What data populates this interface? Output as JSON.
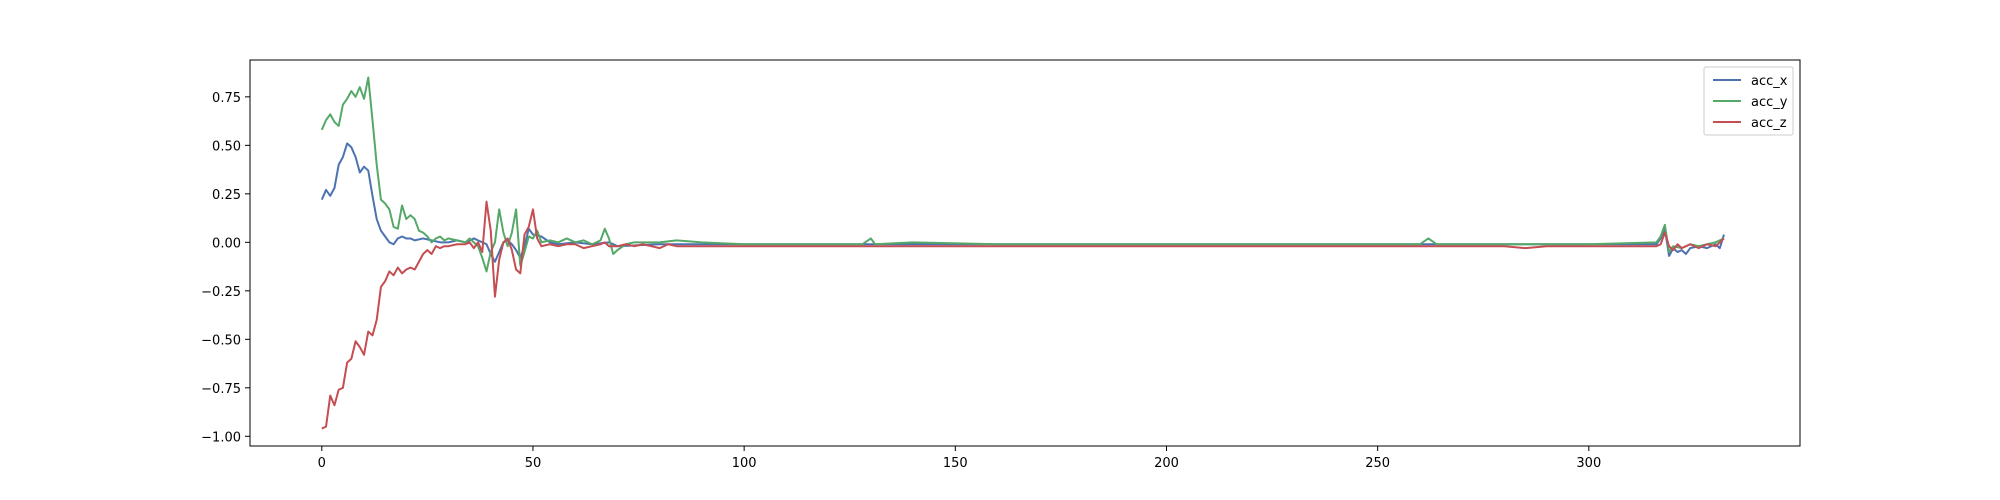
{
  "chart_data": {
    "type": "line",
    "title": "",
    "xlabel": "",
    "ylabel": "",
    "xlim": [
      -17,
      350
    ],
    "ylim": [
      -1.05,
      0.94
    ],
    "grid": false,
    "legend_placement": "top-right",
    "xticks": [
      0,
      50,
      100,
      150,
      200,
      250,
      300
    ],
    "yticks": [
      -1.0,
      -0.75,
      -0.5,
      -0.25,
      0.0,
      0.25,
      0.5,
      0.75
    ],
    "xtick_labels": [
      "0",
      "50",
      "100",
      "150",
      "200",
      "250",
      "300"
    ],
    "ytick_labels": [
      "−1.00",
      "−0.75",
      "−0.50",
      "−0.25",
      "0.00",
      "0.25",
      "0.50",
      "0.75"
    ],
    "series": [
      {
        "name": "acc_x",
        "color": "#4c72b0",
        "points": [
          [
            0,
            0.22
          ],
          [
            1,
            0.27
          ],
          [
            2,
            0.24
          ],
          [
            3,
            0.28
          ],
          [
            4,
            0.4
          ],
          [
            5,
            0.44
          ],
          [
            6,
            0.51
          ],
          [
            7,
            0.49
          ],
          [
            8,
            0.44
          ],
          [
            9,
            0.36
          ],
          [
            10,
            0.39
          ],
          [
            11,
            0.37
          ],
          [
            12,
            0.24
          ],
          [
            13,
            0.12
          ],
          [
            14,
            0.06
          ],
          [
            15,
            0.03
          ],
          [
            16,
            0.0
          ],
          [
            17,
            -0.01
          ],
          [
            18,
            0.02
          ],
          [
            19,
            0.03
          ],
          [
            20,
            0.02
          ],
          [
            21,
            0.02
          ],
          [
            22,
            0.01
          ],
          [
            24,
            0.02
          ],
          [
            26,
            0.01
          ],
          [
            28,
            0.0
          ],
          [
            30,
            0.0
          ],
          [
            32,
            0.01
          ],
          [
            34,
            0.0
          ],
          [
            36,
            0.02
          ],
          [
            37,
            0.01
          ],
          [
            38,
            0.0
          ],
          [
            39,
            -0.01
          ],
          [
            40,
            -0.06
          ],
          [
            41,
            -0.1
          ],
          [
            42,
            -0.05
          ],
          [
            43,
            0.0
          ],
          [
            44,
            0.01
          ],
          [
            45,
            -0.01
          ],
          [
            46,
            -0.04
          ],
          [
            47,
            -0.08
          ],
          [
            48,
            -0.02
          ],
          [
            49,
            0.07
          ],
          [
            50,
            0.04
          ],
          [
            52,
            0.03
          ],
          [
            54,
            0.0
          ],
          [
            56,
            -0.01
          ],
          [
            60,
            0.0
          ],
          [
            64,
            -0.01
          ],
          [
            68,
            0.0
          ],
          [
            70,
            -0.02
          ],
          [
            80,
            -0.01
          ],
          [
            100,
            -0.01
          ],
          [
            120,
            -0.01
          ],
          [
            140,
            -0.01
          ],
          [
            160,
            -0.01
          ],
          [
            180,
            -0.01
          ],
          [
            200,
            -0.01
          ],
          [
            220,
            -0.01
          ],
          [
            240,
            -0.01
          ],
          [
            260,
            -0.01
          ],
          [
            280,
            -0.01
          ],
          [
            300,
            -0.01
          ],
          [
            316,
            -0.01
          ],
          [
            317,
            0.02
          ],
          [
            318,
            0.07
          ],
          [
            319,
            -0.07
          ],
          [
            320,
            -0.03
          ],
          [
            321,
            -0.05
          ],
          [
            322,
            -0.04
          ],
          [
            323,
            -0.06
          ],
          [
            324,
            -0.03
          ],
          [
            326,
            -0.02
          ],
          [
            328,
            -0.03
          ],
          [
            330,
            -0.01
          ],
          [
            331,
            -0.03
          ],
          [
            332,
            0.04
          ]
        ]
      },
      {
        "name": "acc_y",
        "color": "#55a868",
        "points": [
          [
            0,
            0.58
          ],
          [
            1,
            0.63
          ],
          [
            2,
            0.66
          ],
          [
            3,
            0.62
          ],
          [
            4,
            0.6
          ],
          [
            5,
            0.71
          ],
          [
            6,
            0.74
          ],
          [
            7,
            0.78
          ],
          [
            8,
            0.75
          ],
          [
            9,
            0.8
          ],
          [
            10,
            0.74
          ],
          [
            11,
            0.85
          ],
          [
            12,
            0.63
          ],
          [
            13,
            0.4
          ],
          [
            14,
            0.22
          ],
          [
            15,
            0.2
          ],
          [
            16,
            0.17
          ],
          [
            17,
            0.08
          ],
          [
            18,
            0.07
          ],
          [
            19,
            0.19
          ],
          [
            20,
            0.12
          ],
          [
            21,
            0.14
          ],
          [
            22,
            0.12
          ],
          [
            23,
            0.06
          ],
          [
            24,
            0.05
          ],
          [
            25,
            0.03
          ],
          [
            26,
            0.0
          ],
          [
            27,
            0.02
          ],
          [
            28,
            0.03
          ],
          [
            29,
            0.01
          ],
          [
            30,
            0.02
          ],
          [
            32,
            0.01
          ],
          [
            34,
            0.0
          ],
          [
            35,
            0.02
          ],
          [
            36,
            0.0
          ],
          [
            37,
            -0.02
          ],
          [
            38,
            -0.08
          ],
          [
            39,
            -0.15
          ],
          [
            40,
            -0.05
          ],
          [
            41,
            0.0
          ],
          [
            42,
            0.17
          ],
          [
            43,
            0.05
          ],
          [
            44,
            -0.02
          ],
          [
            45,
            0.05
          ],
          [
            46,
            0.17
          ],
          [
            47,
            -0.12
          ],
          [
            48,
            -0.05
          ],
          [
            49,
            0.03
          ],
          [
            50,
            0.02
          ],
          [
            51,
            0.06
          ],
          [
            52,
            0.0
          ],
          [
            54,
            0.01
          ],
          [
            56,
            0.0
          ],
          [
            58,
            0.02
          ],
          [
            60,
            0.0
          ],
          [
            62,
            0.01
          ],
          [
            64,
            -0.01
          ],
          [
            66,
            0.01
          ],
          [
            67,
            0.07
          ],
          [
            68,
            0.02
          ],
          [
            69,
            -0.06
          ],
          [
            70,
            -0.04
          ],
          [
            72,
            -0.01
          ],
          [
            74,
            0.0
          ],
          [
            80,
            0.0
          ],
          [
            84,
            0.01
          ],
          [
            90,
            0.0
          ],
          [
            100,
            -0.01
          ],
          [
            120,
            -0.01
          ],
          [
            128,
            -0.01
          ],
          [
            130,
            0.02
          ],
          [
            131,
            -0.01
          ],
          [
            140,
            0.0
          ],
          [
            160,
            -0.01
          ],
          [
            180,
            -0.01
          ],
          [
            200,
            -0.01
          ],
          [
            220,
            -0.01
          ],
          [
            240,
            -0.01
          ],
          [
            260,
            -0.01
          ],
          [
            262,
            0.02
          ],
          [
            264,
            -0.01
          ],
          [
            280,
            -0.01
          ],
          [
            300,
            -0.01
          ],
          [
            316,
            0.0
          ],
          [
            317,
            0.03
          ],
          [
            318,
            0.09
          ],
          [
            319,
            -0.05
          ],
          [
            320,
            -0.02
          ],
          [
            322,
            -0.03
          ],
          [
            324,
            -0.01
          ],
          [
            326,
            -0.02
          ],
          [
            328,
            -0.01
          ],
          [
            330,
            0.0
          ],
          [
            332,
            0.02
          ]
        ]
      },
      {
        "name": "acc_z",
        "color": "#c44e52",
        "points": [
          [
            0,
            -0.96
          ],
          [
            1,
            -0.95
          ],
          [
            2,
            -0.79
          ],
          [
            3,
            -0.84
          ],
          [
            4,
            -0.76
          ],
          [
            5,
            -0.75
          ],
          [
            6,
            -0.62
          ],
          [
            7,
            -0.6
          ],
          [
            8,
            -0.51
          ],
          [
            9,
            -0.54
          ],
          [
            10,
            -0.58
          ],
          [
            11,
            -0.46
          ],
          [
            12,
            -0.48
          ],
          [
            13,
            -0.4
          ],
          [
            14,
            -0.23
          ],
          [
            15,
            -0.2
          ],
          [
            16,
            -0.15
          ],
          [
            17,
            -0.17
          ],
          [
            18,
            -0.13
          ],
          [
            19,
            -0.16
          ],
          [
            20,
            -0.14
          ],
          [
            21,
            -0.13
          ],
          [
            22,
            -0.14
          ],
          [
            23,
            -0.1
          ],
          [
            24,
            -0.06
          ],
          [
            25,
            -0.04
          ],
          [
            26,
            -0.06
          ],
          [
            27,
            -0.02
          ],
          [
            28,
            -0.03
          ],
          [
            29,
            -0.02
          ],
          [
            30,
            -0.02
          ],
          [
            32,
            -0.01
          ],
          [
            34,
            -0.01
          ],
          [
            35,
            0.0
          ],
          [
            36,
            -0.03
          ],
          [
            37,
            0.0
          ],
          [
            38,
            -0.05
          ],
          [
            39,
            0.21
          ],
          [
            40,
            0.06
          ],
          [
            41,
            -0.28
          ],
          [
            42,
            -0.09
          ],
          [
            43,
            0.0
          ],
          [
            44,
            0.02
          ],
          [
            45,
            -0.04
          ],
          [
            46,
            -0.14
          ],
          [
            47,
            -0.16
          ],
          [
            48,
            0.04
          ],
          [
            49,
            0.08
          ],
          [
            50,
            0.17
          ],
          [
            51,
            0.02
          ],
          [
            52,
            -0.02
          ],
          [
            54,
            -0.01
          ],
          [
            56,
            -0.02
          ],
          [
            58,
            -0.01
          ],
          [
            60,
            -0.01
          ],
          [
            62,
            -0.03
          ],
          [
            64,
            -0.02
          ],
          [
            66,
            -0.01
          ],
          [
            67,
            0.0
          ],
          [
            68,
            -0.02
          ],
          [
            69,
            -0.02
          ],
          [
            70,
            -0.02
          ],
          [
            72,
            -0.01
          ],
          [
            74,
            -0.02
          ],
          [
            76,
            -0.01
          ],
          [
            78,
            -0.02
          ],
          [
            80,
            -0.03
          ],
          [
            82,
            -0.01
          ],
          [
            84,
            -0.02
          ],
          [
            90,
            -0.02
          ],
          [
            100,
            -0.02
          ],
          [
            120,
            -0.02
          ],
          [
            140,
            -0.02
          ],
          [
            160,
            -0.02
          ],
          [
            180,
            -0.02
          ],
          [
            200,
            -0.02
          ],
          [
            220,
            -0.02
          ],
          [
            240,
            -0.02
          ],
          [
            260,
            -0.02
          ],
          [
            280,
            -0.02
          ],
          [
            285,
            -0.03
          ],
          [
            290,
            -0.02
          ],
          [
            300,
            -0.02
          ],
          [
            316,
            -0.02
          ],
          [
            317,
            -0.01
          ],
          [
            318,
            0.05
          ],
          [
            319,
            -0.02
          ],
          [
            320,
            -0.04
          ],
          [
            321,
            -0.01
          ],
          [
            322,
            -0.03
          ],
          [
            324,
            -0.01
          ],
          [
            326,
            -0.03
          ],
          [
            328,
            -0.01
          ],
          [
            330,
            -0.02
          ],
          [
            332,
            0.02
          ]
        ]
      }
    ]
  }
}
